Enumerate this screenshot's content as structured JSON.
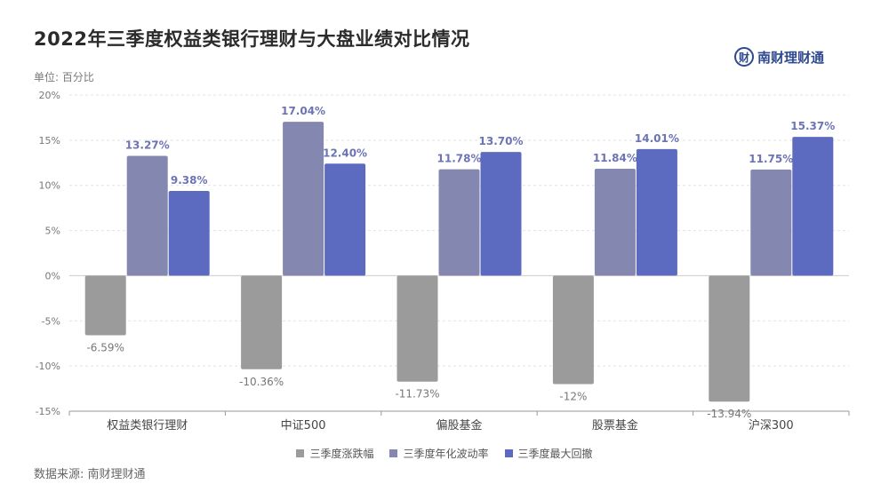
{
  "title": "2022年三季度权益类银行理财与大盘业绩对比情况",
  "unit": "单位: 百分比",
  "source": "数据来源: 南财理财通",
  "logo": {
    "mark": "财",
    "text": "南财理财通"
  },
  "colors": {
    "series": [
      "#9b9b9b",
      "#8487b0",
      "#5c6bc0"
    ],
    "axis": "#999999",
    "grid": "#e2e2e2",
    "neg_label": "#777777",
    "pos_label": "#6d74b5"
  },
  "chart_data": {
    "type": "bar",
    "title": "2022年三季度权益类银行理财与大盘业绩对比情况",
    "ylabel": "单位: 百分比",
    "ylim": [
      -15,
      20
    ],
    "yticks": [
      -15,
      -10,
      -5,
      0,
      5,
      10,
      15,
      20
    ],
    "ytick_labels": [
      "-15%",
      "-10%",
      "-5%",
      "0%",
      "5%",
      "10%",
      "15%",
      "20%"
    ],
    "grid": true,
    "legend_position": "bottom",
    "categories": [
      "权益类银行理财",
      "中证500",
      "偏股基金",
      "股票基金",
      "沪深300"
    ],
    "series": [
      {
        "name": "三季度涨跌幅",
        "values": [
          -6.59,
          -10.36,
          -11.73,
          -12,
          -13.94
        ],
        "labels": [
          "-6.59%",
          "-10.36%",
          "-11.73%",
          "-12%",
          "-13.94%"
        ]
      },
      {
        "name": "三季度年化波动率",
        "values": [
          13.27,
          17.04,
          11.78,
          11.84,
          11.75
        ],
        "labels": [
          "13.27%",
          "17.04%",
          "11.78%",
          "11.84%",
          "11.75%"
        ]
      },
      {
        "name": "三季度最大回撤",
        "values": [
          9.38,
          12.4,
          13.7,
          14.01,
          15.37
        ],
        "labels": [
          "9.38%",
          "12.40%",
          "13.70%",
          "14.01%",
          "15.37%"
        ]
      }
    ]
  }
}
